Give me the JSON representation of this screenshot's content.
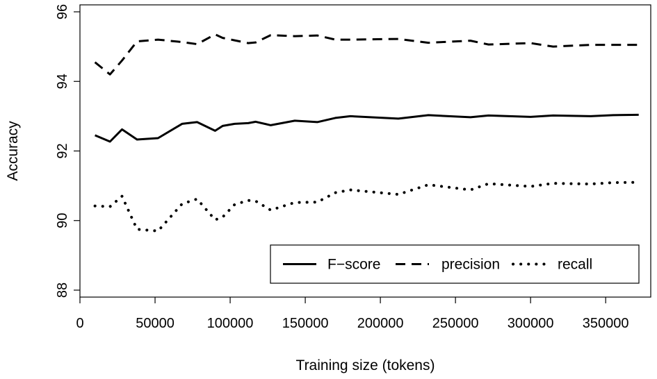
{
  "chart_data": {
    "type": "line",
    "title": "",
    "xlabel": "Training size (tokens)",
    "ylabel": "Accuracy",
    "xlim": [
      0,
      380000
    ],
    "ylim": [
      87.8,
      96.2
    ],
    "x_ticks": [
      0,
      50000,
      100000,
      150000,
      200000,
      250000,
      300000,
      350000
    ],
    "y_ticks": [
      88,
      90,
      92,
      94,
      96
    ],
    "grid": false,
    "legend_position": "bottom-right",
    "series": [
      {
        "name": "F−score",
        "style": "solid",
        "points": [
          [
            10000,
            92.45
          ],
          [
            20000,
            92.27
          ],
          [
            28000,
            92.62
          ],
          [
            38000,
            92.33
          ],
          [
            52000,
            92.37
          ],
          [
            68000,
            92.78
          ],
          [
            78000,
            92.83
          ],
          [
            90000,
            92.58
          ],
          [
            95000,
            92.72
          ],
          [
            103000,
            92.78
          ],
          [
            112000,
            92.8
          ],
          [
            117000,
            92.84
          ],
          [
            127000,
            92.74
          ],
          [
            143000,
            92.87
          ],
          [
            158000,
            92.83
          ],
          [
            170000,
            92.95
          ],
          [
            180000,
            93.0
          ],
          [
            212000,
            92.93
          ],
          [
            232000,
            93.03
          ],
          [
            260000,
            92.97
          ],
          [
            272000,
            93.02
          ],
          [
            300000,
            92.98
          ],
          [
            315000,
            93.02
          ],
          [
            340000,
            93.0
          ],
          [
            355000,
            93.03
          ],
          [
            372000,
            93.04
          ]
        ]
      },
      {
        "name": "precision",
        "style": "dashed",
        "points": [
          [
            10000,
            94.55
          ],
          [
            20000,
            94.2
          ],
          [
            28000,
            94.6
          ],
          [
            38000,
            95.15
          ],
          [
            52000,
            95.2
          ],
          [
            68000,
            95.13
          ],
          [
            78000,
            95.07
          ],
          [
            90000,
            95.35
          ],
          [
            95000,
            95.25
          ],
          [
            103000,
            95.18
          ],
          [
            112000,
            95.1
          ],
          [
            117000,
            95.12
          ],
          [
            127000,
            95.33
          ],
          [
            143000,
            95.3
          ],
          [
            158000,
            95.32
          ],
          [
            170000,
            95.2
          ],
          [
            180000,
            95.2
          ],
          [
            212000,
            95.22
          ],
          [
            232000,
            95.11
          ],
          [
            260000,
            95.17
          ],
          [
            272000,
            95.06
          ],
          [
            300000,
            95.1
          ],
          [
            315000,
            95.0
          ],
          [
            340000,
            95.05
          ],
          [
            355000,
            95.05
          ],
          [
            372000,
            95.05
          ]
        ]
      },
      {
        "name": "recall",
        "style": "dotted",
        "points": [
          [
            10000,
            90.42
          ],
          [
            20000,
            90.4
          ],
          [
            28000,
            90.7
          ],
          [
            38000,
            89.75
          ],
          [
            52000,
            89.7
          ],
          [
            68000,
            90.48
          ],
          [
            78000,
            90.62
          ],
          [
            90000,
            90.02
          ],
          [
            95000,
            90.1
          ],
          [
            103000,
            90.46
          ],
          [
            112000,
            90.58
          ],
          [
            117000,
            90.56
          ],
          [
            127000,
            90.3
          ],
          [
            143000,
            90.52
          ],
          [
            158000,
            90.53
          ],
          [
            170000,
            90.8
          ],
          [
            180000,
            90.88
          ],
          [
            212000,
            90.75
          ],
          [
            232000,
            91.03
          ],
          [
            260000,
            90.88
          ],
          [
            272000,
            91.06
          ],
          [
            300000,
            90.98
          ],
          [
            315000,
            91.07
          ],
          [
            340000,
            91.05
          ],
          [
            355000,
            91.09
          ],
          [
            372000,
            91.1
          ]
        ]
      }
    ]
  }
}
